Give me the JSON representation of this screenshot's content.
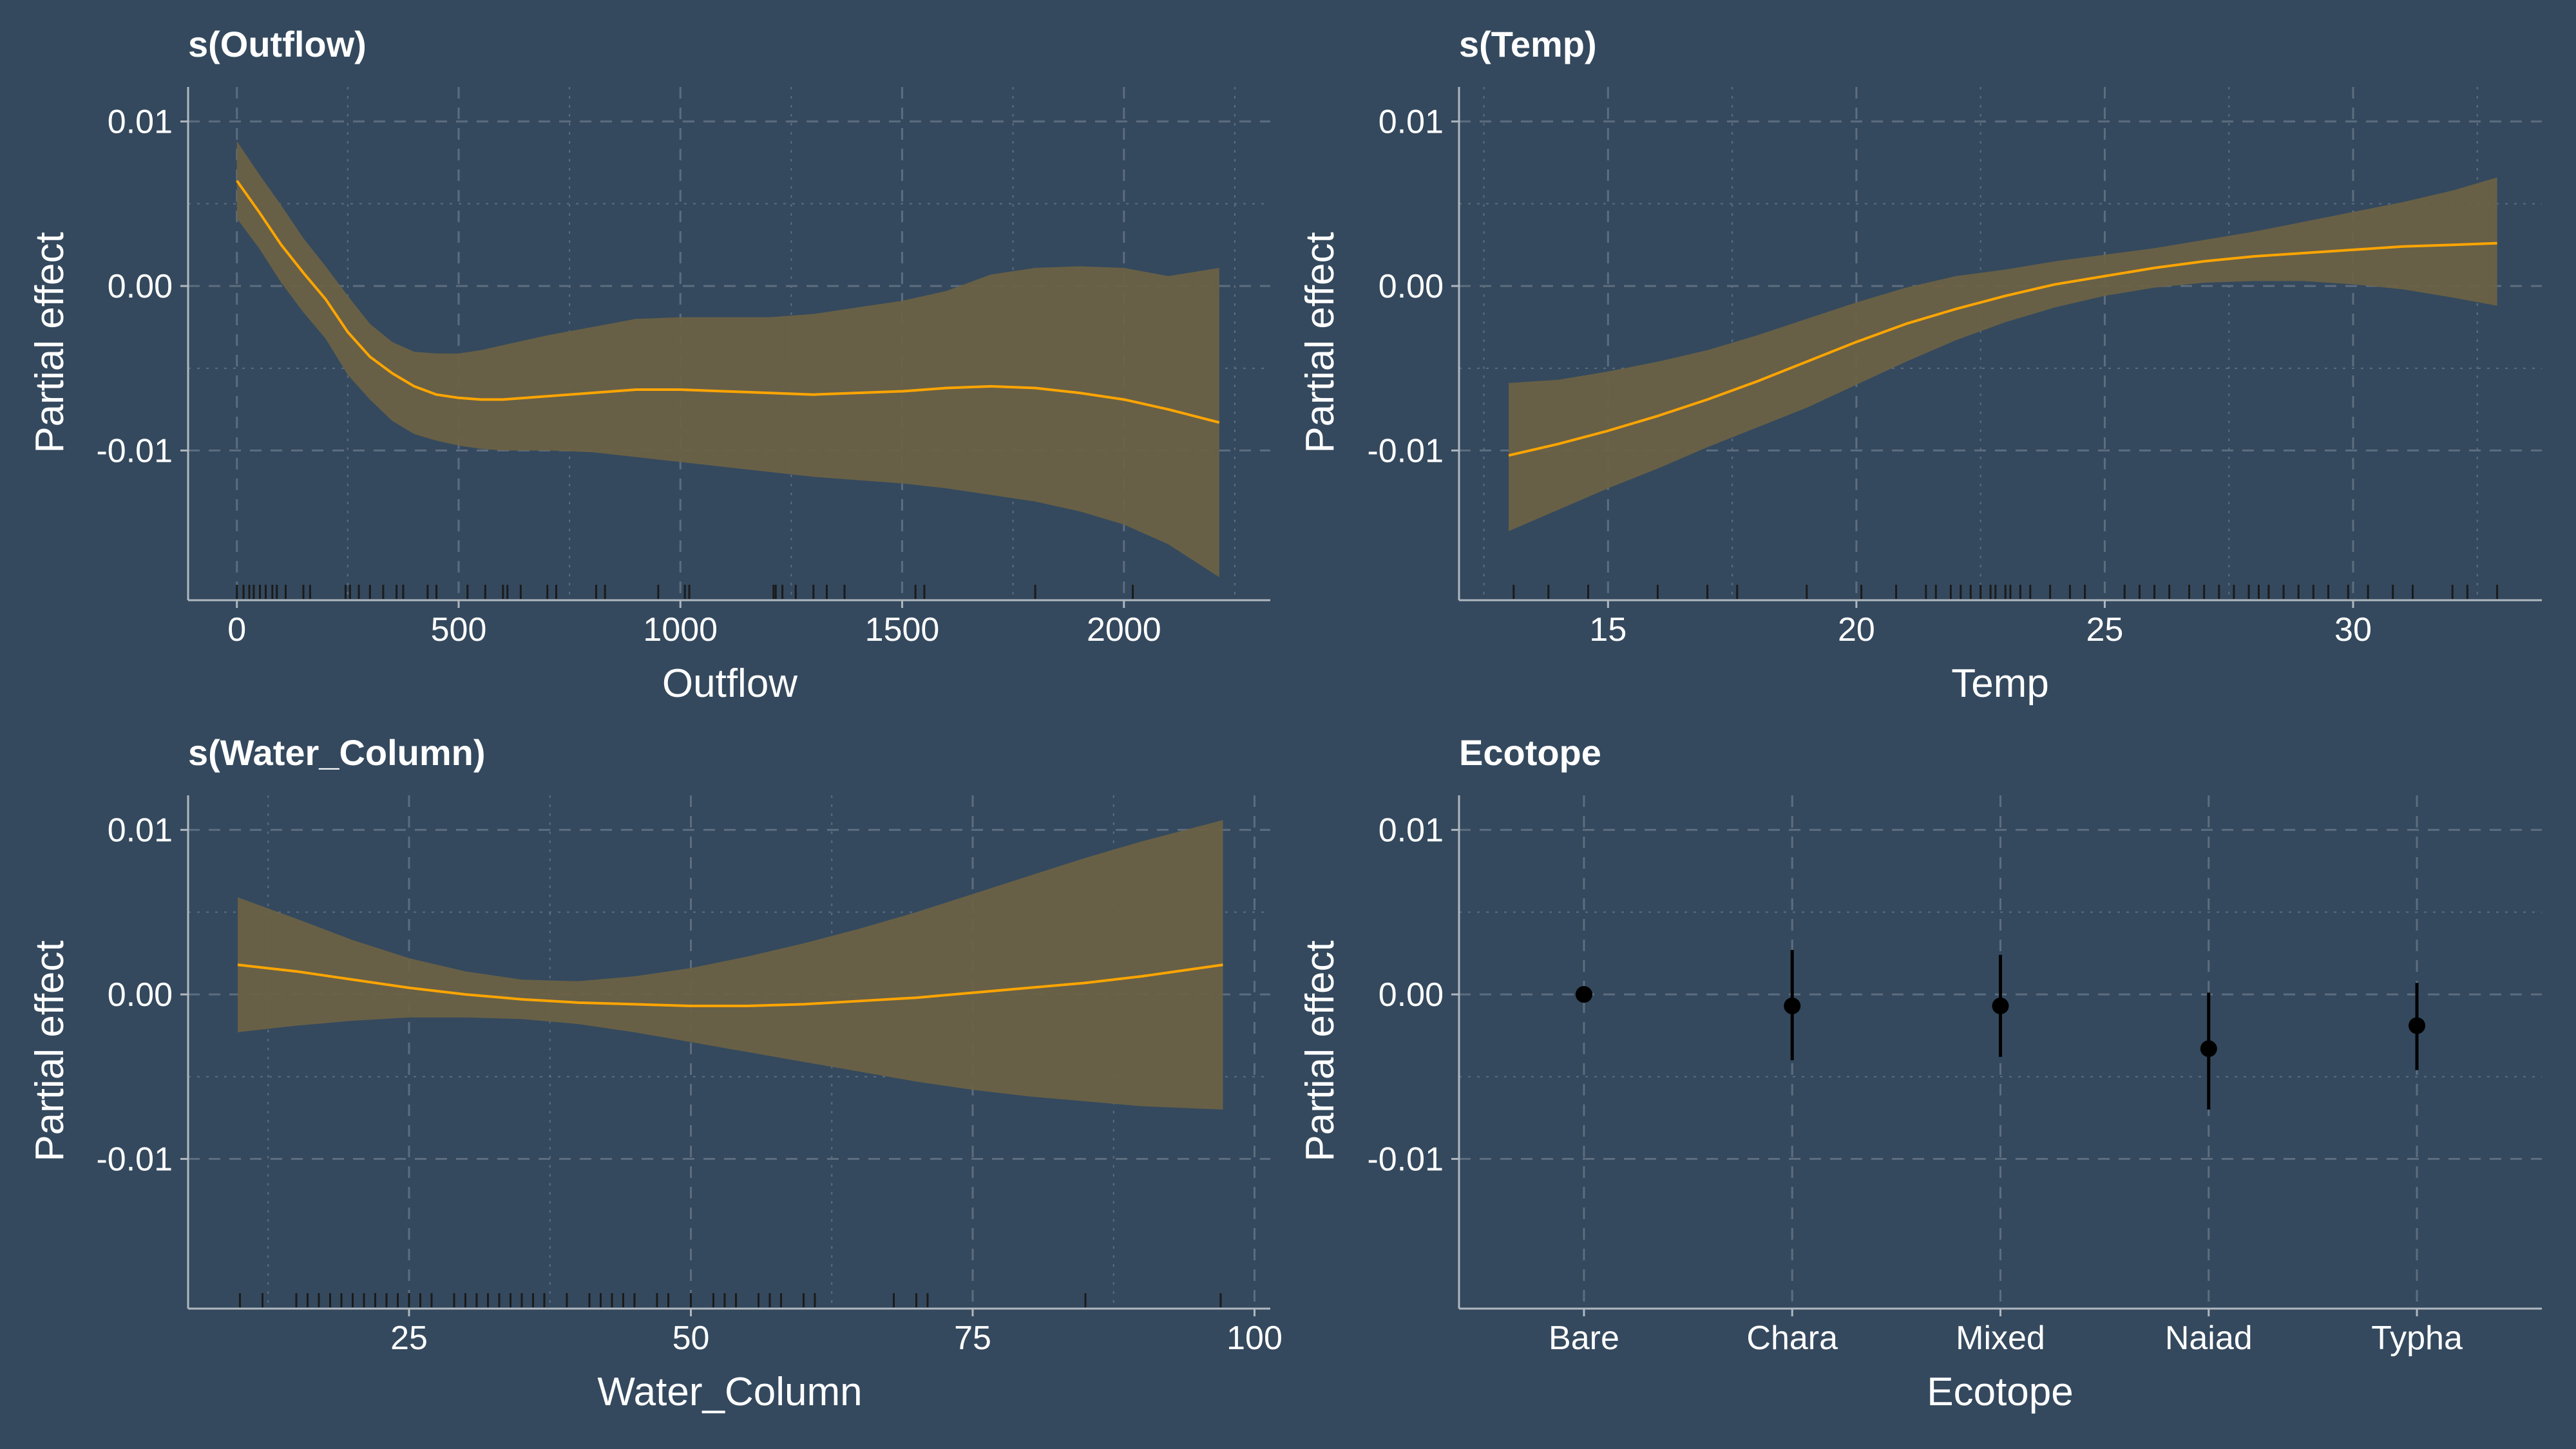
{
  "theme": {
    "background": "#34495e",
    "text": "#ffffff",
    "axis_line": "#b0b7bf",
    "grid": "#5d6d7e",
    "line": "#ffa500",
    "band": "#6b6245",
    "rug": "#1b1b1b",
    "point": "#000000"
  },
  "panels": [
    {
      "title": "s(Outflow)",
      "xlabel": "Outflow",
      "ylabel": "Partial effect"
    },
    {
      "title": "s(Temp)",
      "xlabel": "Temp",
      "ylabel": "Partial effect"
    },
    {
      "title": "s(Water_Column)",
      "xlabel": "Water_Column",
      "ylabel": "Partial effect"
    },
    {
      "title": "Ecotope",
      "xlabel": "Ecotope",
      "ylabel": "Partial effect"
    }
  ],
  "chart_data": [
    {
      "type": "line",
      "title": "s(Outflow)",
      "xlabel": "Outflow",
      "ylabel": "Partial effect",
      "xlim": [
        -110,
        2330
      ],
      "ylim": [
        -0.0191,
        0.0121
      ],
      "xticks": [
        0,
        500,
        1000,
        1500,
        2000
      ],
      "yticks": [
        -0.01,
        0.0,
        0.01
      ],
      "ytick_labels": [
        "-0.01",
        "0.00",
        "0.01"
      ],
      "grid": true,
      "x": [
        0,
        50,
        100,
        150,
        200,
        250,
        300,
        350,
        400,
        450,
        500,
        550,
        600,
        700,
        800,
        900,
        1000,
        1100,
        1200,
        1300,
        1400,
        1500,
        1600,
        1700,
        1800,
        1900,
        2000,
        2100,
        2215
      ],
      "fit": [
        0.0064,
        0.0045,
        0.0025,
        0.0008,
        -0.0008,
        -0.0028,
        -0.0043,
        -0.0053,
        -0.0061,
        -0.0066,
        -0.0068,
        -0.0069,
        -0.0069,
        -0.0067,
        -0.0065,
        -0.0063,
        -0.0063,
        -0.0064,
        -0.0065,
        -0.0066,
        -0.0065,
        -0.0064,
        -0.0062,
        -0.0061,
        -0.0062,
        -0.0065,
        -0.0069,
        -0.0075,
        -0.0083
      ],
      "upper": [
        0.0088,
        0.0068,
        0.0049,
        0.0029,
        0.0012,
        -0.0006,
        -0.0023,
        -0.0034,
        -0.004,
        -0.0041,
        -0.0041,
        -0.0039,
        -0.0036,
        -0.003,
        -0.0025,
        -0.002,
        -0.0019,
        -0.0019,
        -0.0019,
        -0.0017,
        -0.0013,
        -0.0009,
        -0.0003,
        0.0007,
        0.0011,
        0.0012,
        0.0011,
        0.0006,
        0.0011
      ],
      "lower": [
        0.0041,
        0.0023,
        0.0002,
        -0.0016,
        -0.0032,
        -0.0054,
        -0.0069,
        -0.0082,
        -0.009,
        -0.0094,
        -0.0097,
        -0.0099,
        -0.01,
        -0.01,
        -0.0101,
        -0.0104,
        -0.0107,
        -0.011,
        -0.0113,
        -0.0116,
        -0.0118,
        -0.012,
        -0.0123,
        -0.0127,
        -0.0131,
        -0.0137,
        -0.0145,
        -0.0157,
        -0.0177
      ],
      "rug": [
        0,
        15,
        28,
        38,
        52,
        65,
        80,
        90,
        110,
        150,
        165,
        245,
        255,
        275,
        300,
        330,
        360,
        375,
        430,
        450,
        520,
        560,
        600,
        610,
        640,
        700,
        720,
        810,
        830,
        950,
        1010,
        1020,
        1210,
        1215,
        1230,
        1260,
        1300,
        1330,
        1370,
        1530,
        1550,
        1800,
        2020
      ]
    },
    {
      "type": "line",
      "title": "s(Temp)",
      "xlabel": "Temp",
      "ylabel": "Partial effect",
      "xlim": [
        12.0,
        33.8
      ],
      "ylim": [
        -0.0191,
        0.0121
      ],
      "xticks": [
        15,
        20,
        25,
        30
      ],
      "yticks": [
        -0.01,
        0.0,
        0.01
      ],
      "ytick_labels": [
        "-0.01",
        "0.00",
        "0.01"
      ],
      "grid": true,
      "x": [
        13,
        14,
        15,
        16,
        17,
        18,
        19,
        20,
        21,
        22,
        23,
        24,
        25,
        26,
        27,
        28,
        29,
        30,
        31,
        32,
        32.9
      ],
      "fit": [
        -0.0103,
        -0.0096,
        -0.0088,
        -0.0079,
        -0.0069,
        -0.0058,
        -0.0046,
        -0.0034,
        -0.0023,
        -0.0014,
        -0.0006,
        0.0001,
        0.0006,
        0.0011,
        0.0015,
        0.0018,
        0.002,
        0.0022,
        0.0024,
        0.0025,
        0.0026
      ],
      "upper": [
        -0.0059,
        -0.0057,
        -0.0052,
        -0.0046,
        -0.0039,
        -0.003,
        -0.002,
        -0.001,
        -0.0001,
        0.0006,
        0.001,
        0.0015,
        0.0019,
        0.0023,
        0.0028,
        0.0033,
        0.0039,
        0.0045,
        0.0051,
        0.0058,
        0.0066
      ],
      "lower": [
        -0.0149,
        -0.0136,
        -0.0123,
        -0.0111,
        -0.0098,
        -0.0086,
        -0.0074,
        -0.006,
        -0.0046,
        -0.0033,
        -0.0022,
        -0.0013,
        -0.0006,
        -0.0001,
        0.0002,
        0.0003,
        0.0003,
        0.0001,
        -0.0002,
        -0.0007,
        -0.0012
      ],
      "rug": [
        13.1,
        13.8,
        14.6,
        16.0,
        17.0,
        17.6,
        19.0,
        20.1,
        20.8,
        21.4,
        21.6,
        21.9,
        22.1,
        22.3,
        22.5,
        22.7,
        22.8,
        23.0,
        23.1,
        23.3,
        23.5,
        23.9,
        24.3,
        24.6,
        25.4,
        25.7,
        26.0,
        26.3,
        26.7,
        27.0,
        27.3,
        27.6,
        27.9,
        28.1,
        28.3,
        28.6,
        28.9,
        29.2,
        29.5,
        29.9,
        30.3,
        30.8,
        31.2,
        32.0,
        32.3,
        32.9
      ]
    },
    {
      "type": "line",
      "title": "s(Water_Column)",
      "xlabel": "Water_Column",
      "ylabel": "Partial effect",
      "xlim": [
        5.4,
        101.4
      ],
      "ylim": [
        -0.0191,
        0.0121
      ],
      "xticks": [
        25,
        50,
        75,
        100
      ],
      "yticks": [
        -0.01,
        0.0,
        0.01
      ],
      "ytick_labels": [
        "-0.01",
        "0.00",
        "0.01"
      ],
      "grid": true,
      "x": [
        9.8,
        15,
        20,
        25,
        30,
        35,
        40,
        45,
        50,
        55,
        60,
        65,
        70,
        75,
        80,
        85,
        90,
        97.2
      ],
      "fit": [
        0.0018,
        0.0014,
        0.0009,
        0.0004,
        0.0,
        -0.0003,
        -0.0005,
        -0.0006,
        -0.0007,
        -0.0007,
        -0.0006,
        -0.0004,
        -0.0002,
        0.0001,
        0.0004,
        0.0007,
        0.0011,
        0.0018
      ],
      "upper": [
        0.0059,
        0.0046,
        0.0033,
        0.0022,
        0.0014,
        0.0009,
        0.0008,
        0.0011,
        0.0016,
        0.0023,
        0.0031,
        0.004,
        0.005,
        0.0061,
        0.0072,
        0.0083,
        0.0093,
        0.0106
      ],
      "lower": [
        -0.0023,
        -0.0019,
        -0.0016,
        -0.0014,
        -0.0014,
        -0.0015,
        -0.0018,
        -0.0023,
        -0.0029,
        -0.0035,
        -0.0041,
        -0.0047,
        -0.0053,
        -0.0058,
        -0.0062,
        -0.0065,
        -0.0068,
        -0.007
      ],
      "rug": [
        10,
        12,
        15,
        16,
        17,
        18,
        19,
        20,
        21,
        22,
        23,
        24,
        25,
        26,
        27,
        29,
        30,
        31,
        32,
        33,
        34,
        35,
        36,
        37,
        39,
        41,
        42,
        43,
        44,
        45,
        47,
        48,
        50,
        52,
        53,
        54,
        56,
        57,
        58,
        60,
        61,
        68,
        70,
        71,
        85,
        97
      ]
    },
    {
      "type": "scatter",
      "title": "Ecotope",
      "xlabel": "Ecotope",
      "ylabel": "Partial effect",
      "categories": [
        "Bare",
        "Chara",
        "Mixed",
        "Naiad",
        "Typha"
      ],
      "ylim": [
        -0.0191,
        0.0121
      ],
      "yticks": [
        -0.01,
        0.0,
        0.01
      ],
      "ytick_labels": [
        "-0.01",
        "0.00",
        "0.01"
      ],
      "grid": true,
      "values": [
        0.0,
        -0.0007,
        -0.0007,
        -0.0033,
        -0.0019
      ],
      "upper": [
        0.0,
        0.0027,
        0.0024,
        0.0001,
        0.0007
      ],
      "lower": [
        0.0,
        -0.004,
        -0.0038,
        -0.007,
        -0.0046
      ]
    }
  ]
}
